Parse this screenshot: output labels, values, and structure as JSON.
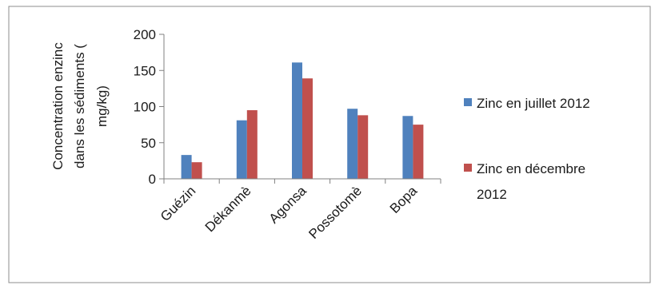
{
  "chart_data": {
    "type": "bar",
    "title": "",
    "xlabel": "",
    "ylabel_lines": [
      "Concentration enzinc",
      "dans les sédiments  (",
      "mg/kg)"
    ],
    "categories": [
      "Guézin",
      "Dékanmè",
      "Agonsa",
      "Possotomè",
      "Bopa"
    ],
    "ylim": [
      0,
      200
    ],
    "yticks": [
      0,
      50,
      100,
      150,
      200
    ],
    "grid": false,
    "legend_position": "right",
    "series": [
      {
        "name": "Zinc en juillet 2012",
        "legend_lines": [
          "Zinc en juillet 2012"
        ],
        "color": "#4f81bd",
        "values": [
          33,
          81,
          161,
          97,
          87
        ]
      },
      {
        "name": "Zinc en décembre 2012",
        "legend_lines": [
          "Zinc en décembre",
          "2012"
        ],
        "color": "#c0504d",
        "values": [
          23,
          95,
          139,
          88,
          75
        ]
      }
    ]
  }
}
